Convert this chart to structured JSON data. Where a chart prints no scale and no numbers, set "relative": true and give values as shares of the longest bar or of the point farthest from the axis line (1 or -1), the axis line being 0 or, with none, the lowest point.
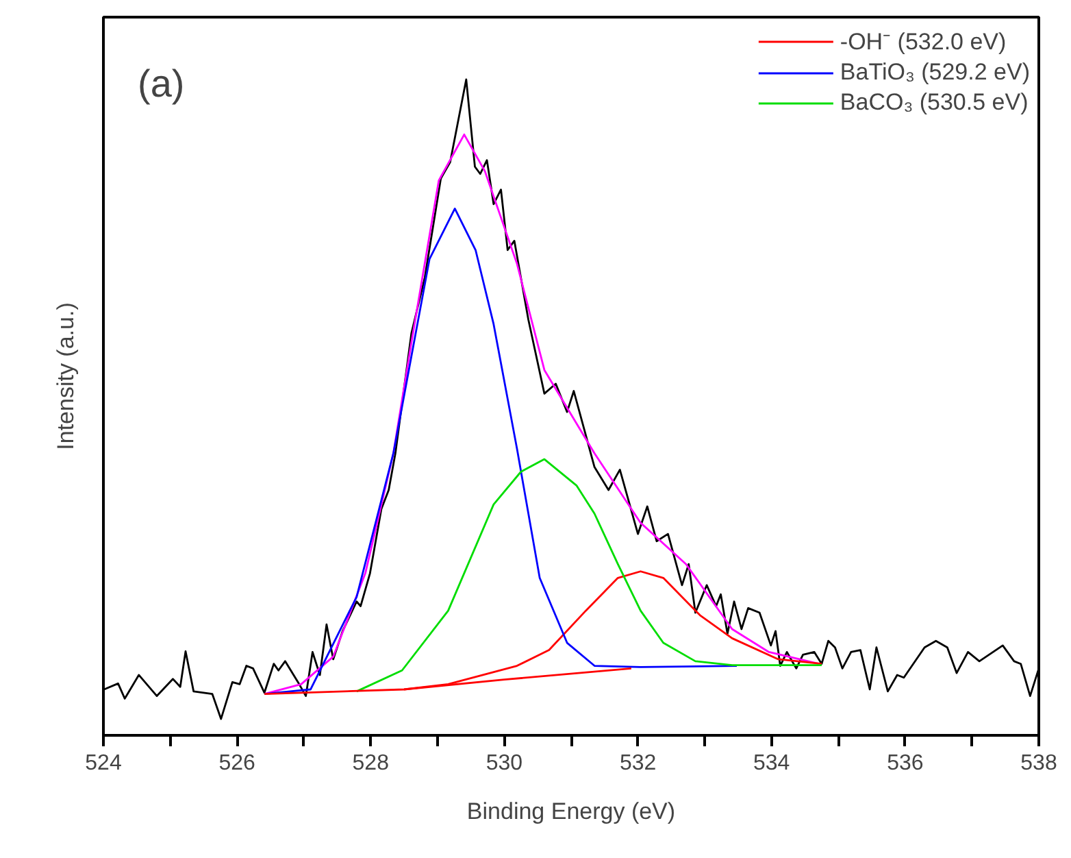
{
  "chart_data": {
    "type": "line",
    "relative": true,
    "xlabel": "Binding Energy (eV)",
    "ylabel": "Intensity (a.u.)",
    "annotations": [
      "(a)"
    ],
    "xlim": [
      524,
      538
    ],
    "xticks": [
      524,
      {
        "value": 525,
        "label": null
      },
      526,
      {
        "value": 527,
        "label": null
      },
      528,
      {
        "value": 529,
        "label": null
      },
      530,
      {
        "value": 531,
        "label": null
      },
      532,
      {
        "value": 533,
        "label": null
      },
      534,
      {
        "value": 535,
        "label": null
      },
      536,
      {
        "value": 537,
        "label": null
      },
      538
    ],
    "legend": "top right",
    "grid": false,
    "marker": "none",
    "line_style": "solid",
    "series": [
      {
        "color": "#000000",
        "x": [
          524.01,
          524.22,
          524.32,
          524.53,
          524.8,
          525.04,
          525.15,
          525.23,
          525.35,
          525.63,
          525.76,
          525.93,
          526.04,
          526.14,
          526.24,
          526.41,
          526.55,
          526.62,
          526.72,
          526.93,
          527.03,
          527.13,
          527.24,
          527.34,
          527.44,
          527.58,
          527.79,
          527.85,
          527.99,
          528.16,
          528.27,
          528.37,
          528.61,
          528.81,
          529.05,
          529.19,
          529.43,
          529.56,
          529.64,
          529.74,
          529.84,
          529.95,
          530.05,
          530.15,
          530.36,
          530.6,
          530.77,
          530.94,
          531.04,
          531.35,
          531.56,
          531.73,
          532.0,
          532.14,
          532.28,
          532.45,
          532.66,
          532.76,
          532.86,
          533.03,
          533.17,
          533.24,
          533.34,
          533.44,
          533.55,
          533.65,
          533.82,
          533.99,
          534.06,
          534.13,
          534.23,
          534.37,
          534.47,
          534.64,
          534.75,
          534.85,
          534.95,
          535.06,
          535.19,
          535.33,
          535.47,
          535.57,
          535.74,
          535.88,
          535.98,
          536.29,
          536.46,
          536.63,
          536.77,
          536.94,
          537.11,
          537.46,
          537.63,
          537.73,
          537.87,
          538.0
        ],
        "values": [
          0.07,
          0.079,
          0.056,
          0.092,
          0.06,
          0.086,
          0.074,
          0.128,
          0.067,
          0.063,
          0.025,
          0.081,
          0.078,
          0.106,
          0.102,
          0.065,
          0.109,
          0.099,
          0.113,
          0.078,
          0.06,
          0.127,
          0.092,
          0.169,
          0.116,
          0.159,
          0.204,
          0.197,
          0.247,
          0.345,
          0.374,
          0.43,
          0.613,
          0.698,
          0.849,
          0.874,
          1.0,
          0.867,
          0.856,
          0.877,
          0.81,
          0.832,
          0.74,
          0.754,
          0.634,
          0.521,
          0.536,
          0.493,
          0.525,
          0.409,
          0.374,
          0.405,
          0.307,
          0.349,
          0.296,
          0.307,
          0.229,
          0.261,
          0.187,
          0.229,
          0.197,
          0.215,
          0.155,
          0.204,
          0.162,
          0.194,
          0.187,
          0.137,
          0.159,
          0.106,
          0.127,
          0.102,
          0.123,
          0.127,
          0.109,
          0.144,
          0.134,
          0.102,
          0.127,
          0.13,
          0.07,
          0.134,
          0.067,
          0.092,
          0.088,
          0.134,
          0.144,
          0.134,
          0.095,
          0.127,
          0.113,
          0.137,
          0.113,
          0.109,
          0.06,
          0.102
        ]
      },
      {
        "color": "#ff00ff",
        "x": [
          526.41,
          526.96,
          527.44,
          527.92,
          528.34,
          528.61,
          529.02,
          529.4,
          529.71,
          530.19,
          530.6,
          531.35,
          532.04,
          532.72,
          533.41,
          533.96,
          534.71
        ],
        "values": [
          0.063,
          0.078,
          0.12,
          0.247,
          0.43,
          0.599,
          0.846,
          0.916,
          0.86,
          0.719,
          0.557,
          0.43,
          0.324,
          0.261,
          0.162,
          0.127,
          0.109
        ]
      },
      {
        "name": "-OH⁻ (532.0 eV)",
        "color": "#ff0000",
        "x": [
          528.5,
          529.16,
          530.19,
          530.67,
          531.22,
          531.7,
          532.04,
          532.38,
          532.93,
          533.41,
          534.1,
          534.75
        ],
        "values": [
          0.07,
          0.078,
          0.106,
          0.13,
          0.19,
          0.24,
          0.25,
          0.24,
          0.183,
          0.148,
          0.116,
          0.109
        ]
      },
      {
        "name": "BaTiO₃ (529.2 eV)",
        "color": "#0000ff",
        "x": [
          526.41,
          527.1,
          527.79,
          528.34,
          528.61,
          528.88,
          529.26,
          529.57,
          529.84,
          530.19,
          530.53,
          530.94,
          531.35,
          532.04,
          533.48
        ],
        "values": [
          0.063,
          0.07,
          0.211,
          0.43,
          0.578,
          0.726,
          0.803,
          0.74,
          0.627,
          0.437,
          0.24,
          0.141,
          0.106,
          0.104,
          0.106
        ]
      },
      {
        "name": "BaCO₃ (530.5 eV)",
        "color": "#00dd00",
        "x": [
          527.79,
          528.47,
          529.16,
          529.84,
          530.25,
          530.6,
          531.08,
          531.35,
          531.7,
          532.04,
          532.38,
          532.86,
          533.41,
          534.75
        ],
        "values": [
          0.067,
          0.099,
          0.19,
          0.352,
          0.402,
          0.421,
          0.381,
          0.338,
          0.261,
          0.19,
          0.141,
          0.113,
          0.107,
          0.107
        ]
      },
      {
        "color": "#ff0000",
        "x": [
          526.41,
          528.5,
          530.0,
          531.9
        ],
        "values": [
          0.063,
          0.07,
          0.085,
          0.102
        ]
      }
    ]
  }
}
